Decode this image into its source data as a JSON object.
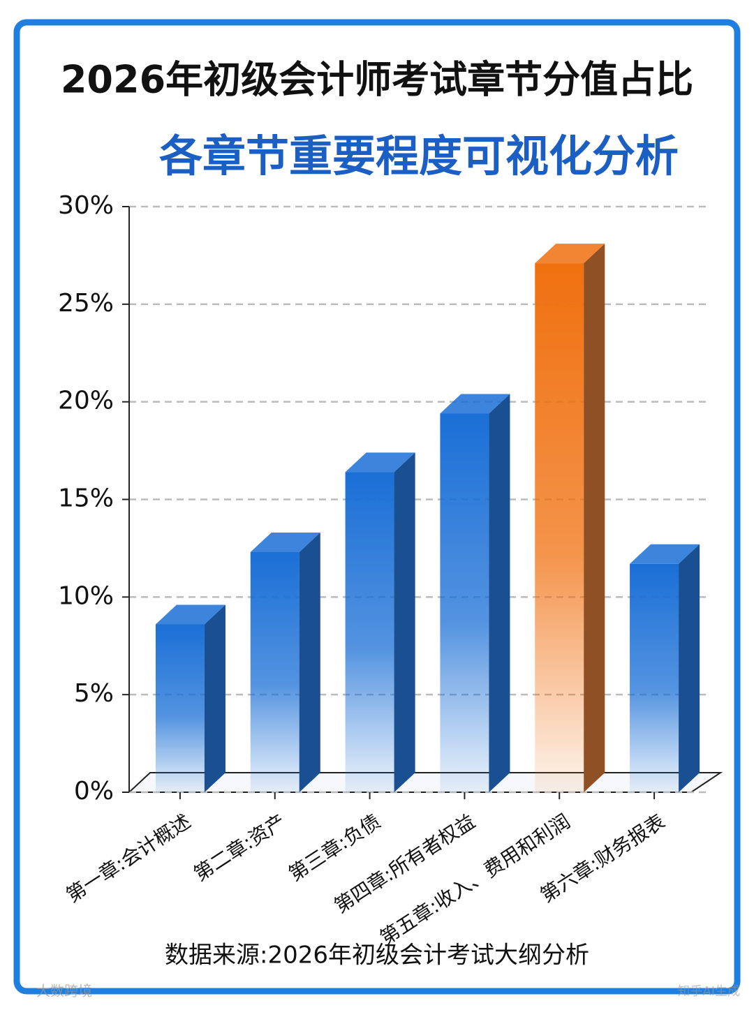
{
  "chart_data": {
    "type": "bar3d",
    "title": "2026年初级会计师考试章节分值占比",
    "subtitle": "各章节重要程度可视化分析",
    "categories": [
      "第一章:会计概述",
      "第二章:资产",
      "第三章:负债",
      "第四章:所有者权益",
      "第五章:收入、费用和利润",
      "第六章:财务报表"
    ],
    "values": [
      8.6,
      12.3,
      16.4,
      19.4,
      27.1,
      11.7
    ],
    "colors": [
      "#1a6fd6",
      "#1a6fd6",
      "#1a6fd6",
      "#1a6fd6",
      "#f0700f",
      "#1a6fd6"
    ],
    "ylim": [
      0,
      30
    ],
    "yticks": [
      {
        "value": 0,
        "label": "0%"
      },
      {
        "value": 5,
        "label": "5%"
      },
      {
        "value": 10,
        "label": "10%"
      },
      {
        "value": 15,
        "label": "15%"
      },
      {
        "value": 20,
        "label": "20%"
      },
      {
        "value": 25,
        "label": "25%"
      },
      {
        "value": 30,
        "label": "30%"
      }
    ],
    "grid": true,
    "source": "数据来源:2026年初级会计考试大纲分析",
    "watermarks": [
      "大数跨境",
      "知乎AI生成"
    ]
  }
}
